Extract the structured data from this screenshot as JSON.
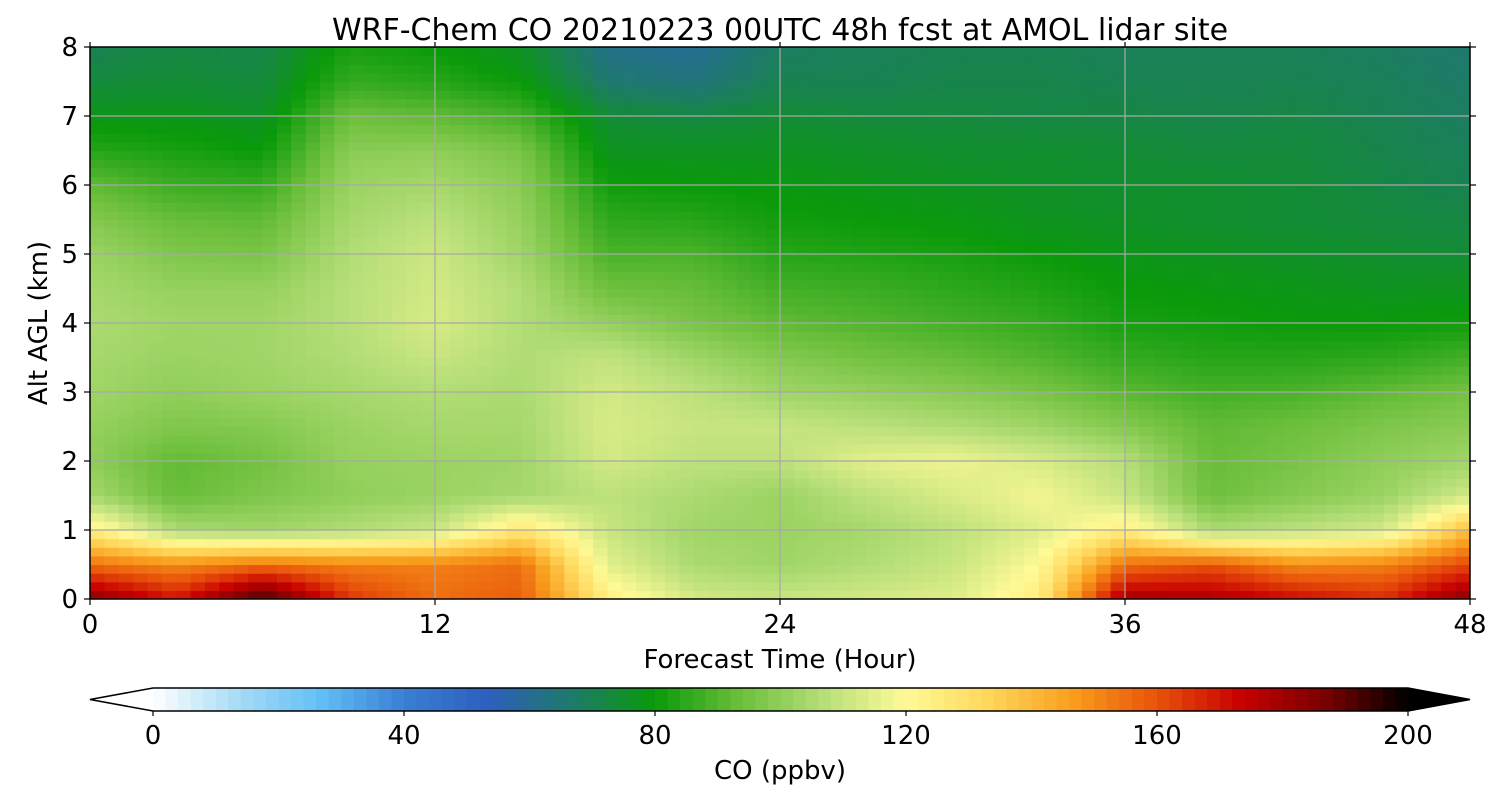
{
  "chart_data": {
    "type": "heatmap",
    "title": "WRF-Chem CO  20210223 00UTC 48h fcst at AMOL lidar site",
    "xlabel": "Forecast Time (Hour)",
    "ylabel": "Alt AGL (km)",
    "xlim": [
      0,
      48
    ],
    "ylim": [
      0,
      8
    ],
    "xticks": [
      0,
      12,
      24,
      36,
      48
    ],
    "yticks": [
      0,
      1,
      2,
      3,
      4,
      5,
      6,
      7,
      8
    ],
    "grid": true,
    "x": [
      0,
      3,
      6,
      9,
      12,
      15,
      18,
      21,
      24,
      27,
      30,
      33,
      36,
      39,
      42,
      45,
      48
    ],
    "y": [
      0,
      0.5,
      1,
      1.5,
      2,
      2.5,
      3,
      3.5,
      4,
      4.5,
      5,
      5.5,
      6,
      6.5,
      7,
      7.5,
      8
    ],
    "z": [
      [
        185,
        170,
        195,
        165,
        155,
        158,
        125,
        112,
        110,
        112,
        114,
        125,
        180,
        178,
        172,
        166,
        185
      ],
      [
        155,
        150,
        155,
        152,
        152,
        155,
        115,
        105,
        103,
        106,
        110,
        120,
        155,
        160,
        150,
        152,
        162
      ],
      [
        125,
        105,
        103,
        106,
        110,
        128,
        110,
        103,
        102,
        104,
        108,
        114,
        125,
        105,
        108,
        112,
        140
      ],
      [
        104,
        93,
        97,
        100,
        102,
        104,
        108,
        105,
        102,
        108,
        113,
        118,
        110,
        94,
        98,
        102,
        112
      ],
      [
        100,
        92,
        95,
        101,
        102,
        103,
        112,
        108,
        108,
        115,
        117,
        113,
        107,
        93,
        96,
        100,
        103
      ],
      [
        101,
        97,
        98,
        102,
        104,
        104,
        113,
        110,
        110,
        108,
        106,
        103,
        98,
        92,
        94,
        97,
        99
      ],
      [
        103,
        100,
        102,
        104,
        106,
        105,
        112,
        108,
        103,
        101,
        99,
        96,
        91,
        88,
        89,
        92,
        95
      ],
      [
        104,
        102,
        103,
        106,
        110,
        106,
        109,
        103,
        98,
        95,
        93,
        90,
        86,
        84,
        84,
        85,
        88
      ],
      [
        105,
        103,
        103,
        107,
        113,
        106,
        101,
        96,
        92,
        90,
        88,
        86,
        82,
        81,
        80,
        80,
        81
      ],
      [
        104,
        101,
        101,
        107,
        112,
        106,
        94,
        93,
        88,
        87,
        85,
        83,
        80,
        79,
        78,
        77,
        77
      ],
      [
        102,
        97,
        96,
        106,
        111,
        103,
        89,
        89,
        84,
        83,
        82,
        80,
        78,
        77,
        76,
        75,
        74
      ],
      [
        98,
        93,
        92,
        104,
        108,
        101,
        85,
        84,
        81,
        80,
        79,
        77,
        76,
        75,
        74,
        73,
        72
      ],
      [
        92,
        87,
        86,
        102,
        104,
        99,
        81,
        80,
        79,
        78,
        77,
        76,
        75,
        75,
        74,
        72,
        70
      ],
      [
        84,
        82,
        80,
        99,
        100,
        96,
        77,
        77,
        77,
        76,
        75,
        75,
        74,
        73,
        73,
        71,
        69
      ],
      [
        78,
        78,
        76,
        94,
        92,
        88,
        74,
        72,
        74,
        73,
        73,
        72,
        72,
        71,
        72,
        70,
        68
      ],
      [
        73,
        74,
        73,
        86,
        84,
        80,
        66,
        64,
        70,
        70,
        71,
        71,
        70,
        70,
        70,
        69,
        67
      ],
      [
        70,
        72,
        71,
        82,
        80,
        76,
        62,
        60,
        68,
        69,
        70,
        70,
        69,
        69,
        69,
        68,
        66
      ]
    ],
    "colorbar": {
      "label": "CO  (ppbv)",
      "min": 0,
      "max": 200,
      "ticks": [
        0,
        40,
        80,
        120,
        160,
        200
      ],
      "extend": "both",
      "orientation": "horizontal"
    },
    "colormap": [
      "#ffffff",
      "#a8dcf6",
      "#62bff6",
      "#3a7fd4",
      "#2d5fbe",
      "#1e7a6a",
      "#0a9a0a",
      "#6abe3a",
      "#b5de78",
      "#fffa96",
      "#ffd65a",
      "#f99d1c",
      "#e8520a",
      "#c80000",
      "#7a0000",
      "#000000"
    ]
  }
}
